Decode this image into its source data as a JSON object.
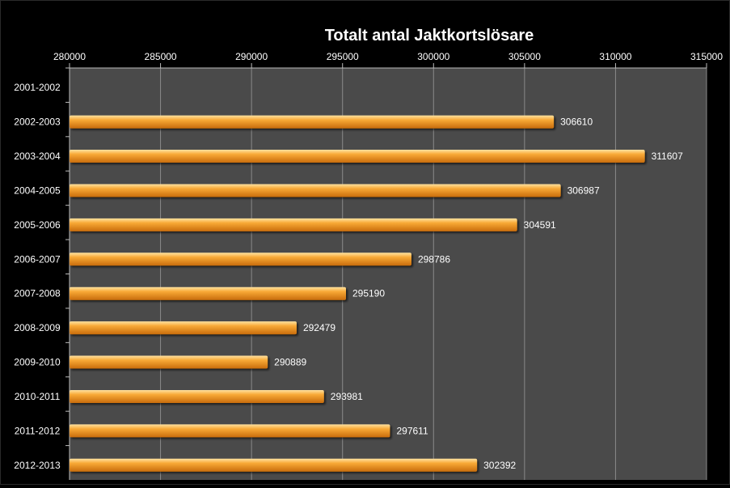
{
  "chart_data": {
    "type": "bar",
    "orientation": "horizontal",
    "title": "Totalt antal Jaktkortslösare",
    "xlabel": "",
    "ylabel": "",
    "xlim": [
      280000,
      315000
    ],
    "x_ticks": [
      "280000",
      "285000",
      "290000",
      "295000",
      "300000",
      "305000",
      "310000",
      "315000"
    ],
    "x_tick_values": [
      280000,
      285000,
      290000,
      295000,
      300000,
      305000,
      310000,
      315000
    ],
    "x_axis_position": "top",
    "grid": true,
    "legend": "none",
    "categories": [
      "2001-2002",
      "2002-2003",
      "2003-2004",
      "2004-2005",
      "2005-2006",
      "2006-2007",
      "2007-2008",
      "2008-2009",
      "2009-2010",
      "2010-2011",
      "2011-2012",
      "2012-2013"
    ],
    "values": [
      null,
      306610,
      311607,
      306987,
      304591,
      298786,
      295190,
      292479,
      290889,
      293981,
      297611,
      302392
    ],
    "data_labels": [
      "",
      "306610",
      "311607",
      "306987",
      "304591",
      "298786",
      "295190",
      "292479",
      "290889",
      "293981",
      "297611",
      "302392"
    ],
    "colors": {
      "background": "#000000",
      "plot_area": "#4a4a4a",
      "gridline": "#8a8a8a",
      "bar_light": "#ffd27a",
      "bar_mid": "#f7a530",
      "bar_dark": "#c9700e",
      "text": "#ffffff"
    }
  }
}
